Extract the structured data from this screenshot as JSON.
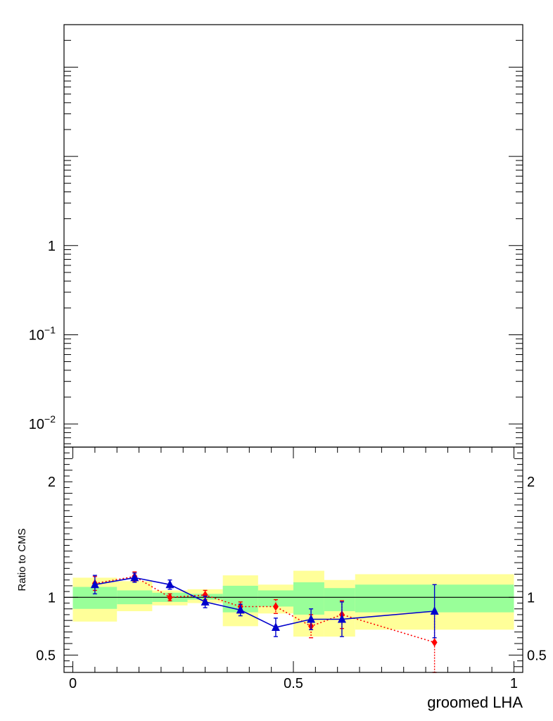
{
  "chart_data": [
    {
      "type": "line",
      "panel": "top",
      "title": "",
      "xlabel": "",
      "ylabel": "",
      "yscale": "log",
      "ylim": [
        0.0055,
        300
      ],
      "yticks": [
        {
          "value": 1,
          "label": "1",
          "base": "",
          "exp": ""
        },
        {
          "value": 0.1,
          "label": "",
          "base": "10",
          "exp": "−1"
        },
        {
          "value": 0.01,
          "label": "",
          "base": "10",
          "exp": "−2"
        }
      ],
      "series": []
    },
    {
      "type": "line",
      "panel": "ratio",
      "xlabel": "groomed LHA",
      "ylabel": "Ratio to CMS",
      "xlim": [
        -0.02,
        1.02
      ],
      "ylim": [
        0.35,
        2.3
      ],
      "xticks": [
        {
          "value": 0,
          "label": "0"
        },
        {
          "value": 0.5,
          "label": "0.5"
        },
        {
          "value": 1,
          "label": "1"
        }
      ],
      "yticks": [
        {
          "value": 0.5,
          "label": "0.5"
        },
        {
          "value": 1,
          "label": "1"
        },
        {
          "value": 2,
          "label": "2"
        }
      ],
      "reference_line": 1,
      "uncertainty_bands": [
        {
          "x0": 0.0,
          "x1": 0.1,
          "outer": [
            0.79,
            1.17
          ],
          "inner": [
            0.9,
            1.09
          ]
        },
        {
          "x0": 0.1,
          "x1": 0.18,
          "outer": [
            0.88,
            1.14
          ],
          "inner": [
            0.94,
            1.06
          ]
        },
        {
          "x0": 0.18,
          "x1": 0.26,
          "outer": [
            0.93,
            1.06
          ],
          "inner": [
            0.96,
            1.04
          ]
        },
        {
          "x0": 0.26,
          "x1": 0.34,
          "outer": [
            0.95,
            1.07
          ],
          "inner": [
            0.98,
            1.03
          ]
        },
        {
          "x0": 0.34,
          "x1": 0.42,
          "outer": [
            0.75,
            1.19
          ],
          "inner": [
            0.87,
            1.1
          ]
        },
        {
          "x0": 0.42,
          "x1": 0.5,
          "outer": [
            0.86,
            1.11
          ],
          "inner": [
            0.92,
            1.06
          ]
        },
        {
          "x0": 0.5,
          "x1": 0.57,
          "outer": [
            0.66,
            1.23
          ],
          "inner": [
            0.85,
            1.13
          ]
        },
        {
          "x0": 0.57,
          "x1": 0.64,
          "outer": [
            0.66,
            1.15
          ],
          "inner": [
            0.88,
            1.08
          ]
        },
        {
          "x0": 0.64,
          "x1": 1.0,
          "outer": [
            0.72,
            1.2
          ],
          "inner": [
            0.87,
            1.11
          ]
        }
      ],
      "series": [
        {
          "name": "blue",
          "color": "#0000cc",
          "marker": "triangle",
          "line": "solid",
          "x": [
            0.05,
            0.14,
            0.22,
            0.3,
            0.38,
            0.46,
            0.54,
            0.61,
            0.82
          ],
          "y": [
            1.11,
            1.17,
            1.11,
            0.96,
            0.89,
            0.74,
            0.81,
            0.81,
            0.88
          ],
          "yerr": [
            0.08,
            0.04,
            0.04,
            0.05,
            0.05,
            0.08,
            0.09,
            0.15,
            0.23
          ]
        },
        {
          "name": "red",
          "color": "#ff0000",
          "marker": "diamond",
          "line": "dotted",
          "x": [
            0.05,
            0.14,
            0.22,
            0.3,
            0.38,
            0.46,
            0.54,
            0.61,
            0.82
          ],
          "y": [
            1.12,
            1.18,
            1.0,
            1.02,
            0.92,
            0.92,
            0.75,
            0.85,
            0.61
          ],
          "yerr": [
            0.06,
            0.04,
            0.03,
            0.04,
            0.04,
            0.06,
            0.1,
            0.12,
            0.26
          ]
        }
      ]
    }
  ]
}
